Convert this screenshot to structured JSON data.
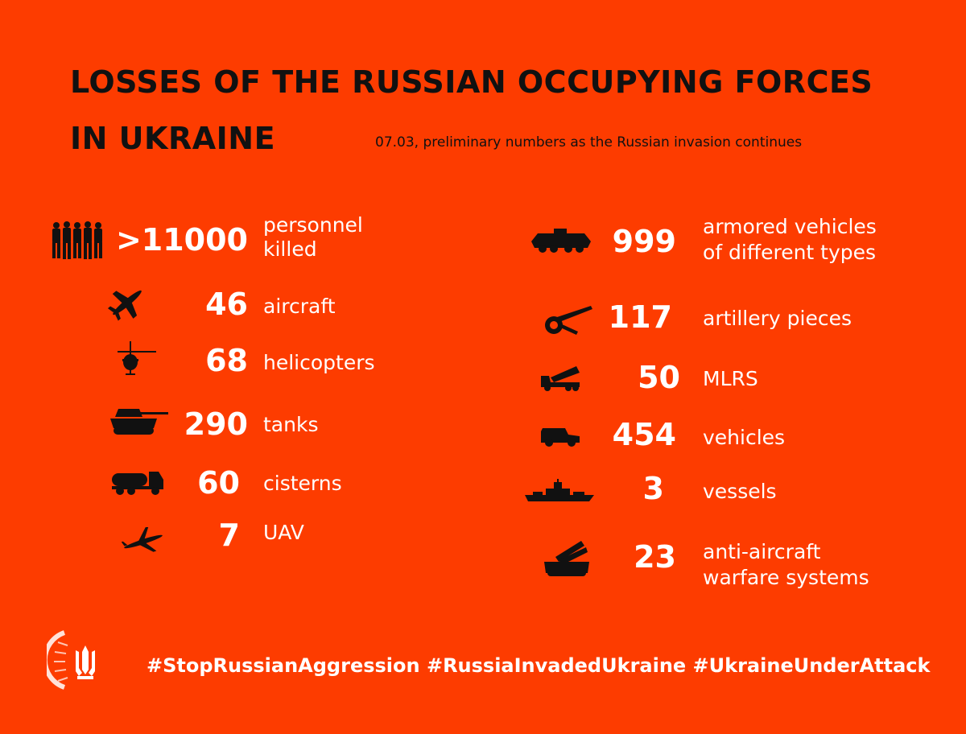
{
  "header": {
    "title_line1": "LOSSES OF THE RUSSIAN OCCUPYING FORCES",
    "title_line2": "IN UKRAINE",
    "subtitle": "07.03, preliminary numbers as the Russian invasion continues"
  },
  "left": [
    {
      "icon": "soldiers-icon",
      "number": ">11000",
      "label1": "personnel",
      "label2": "killed"
    },
    {
      "icon": "aircraft-icon",
      "number": "46",
      "label1": "aircraft",
      "label2": ""
    },
    {
      "icon": "helicopter-icon",
      "number": "68",
      "label1": "helicopters",
      "label2": ""
    },
    {
      "icon": "tank-icon",
      "number": "290",
      "label1": "tanks",
      "label2": ""
    },
    {
      "icon": "cistern-icon",
      "number": "60",
      "label1": "cisterns",
      "label2": ""
    },
    {
      "icon": "uav-icon",
      "number": "7",
      "label1": "UAV",
      "label2": ""
    }
  ],
  "right": [
    {
      "icon": "armored-vehicle-icon",
      "number": "999",
      "label1": "armored vehicles",
      "label2": "of different types"
    },
    {
      "icon": "artillery-icon",
      "number": "117",
      "label1": "artillery pieces",
      "label2": ""
    },
    {
      "icon": "mlrs-icon",
      "number": "50",
      "label1": "MLRS",
      "label2": ""
    },
    {
      "icon": "vehicle-icon",
      "number": "454",
      "label1": "vehicles",
      "label2": ""
    },
    {
      "icon": "vessel-icon",
      "number": "3",
      "label1": "vessels",
      "label2": ""
    },
    {
      "icon": "anti-aircraft-icon",
      "number": "23",
      "label1": "anti-aircraft",
      "label2": "warfare systems"
    }
  ],
  "footer": {
    "hashtags": "#StopRussianAggression #RussiaInvadedUkraine #UkraineUnderAttack",
    "logo_icon": "trident-logo-icon"
  },
  "colors": {
    "background": "#fd3c00",
    "text_dark": "#111111",
    "text_light": "#ffffff"
  }
}
